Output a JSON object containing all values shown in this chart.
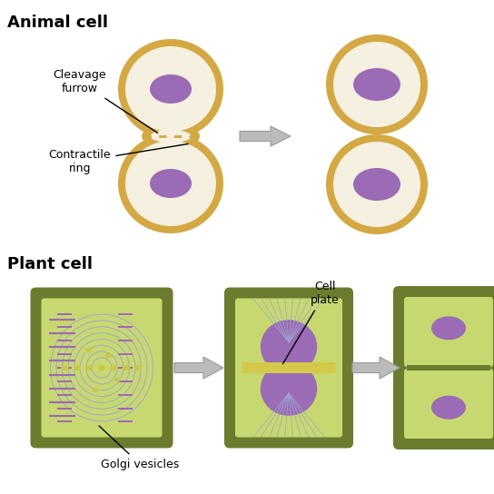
{
  "title_animal": "Animal cell",
  "title_plant": "Plant cell",
  "bg_color": "#ffffff",
  "animal_outer_color": "#D4A843",
  "animal_inner_color": "#F5F0E0",
  "nucleus_color": "#9B6BB5",
  "plant_outer_color": "#6B7C2E",
  "plant_inner_color": "#C8D870",
  "spindle_color": "#A0A8D0",
  "cell_plate_color": "#D4C84A",
  "golgi_color": "#9B6BB5",
  "arrow_color": "#BBBBBB",
  "arrow_edge_color": "#999999",
  "label_cleavage": "Cleavage\nfurrow",
  "label_contractile": "Contractile\nring",
  "label_cell_plate": "Cell\nplate",
  "label_golgi": "Golgi vesicles",
  "dashed_color": "#D4A843",
  "font_size_title": 13,
  "font_size_label": 9
}
